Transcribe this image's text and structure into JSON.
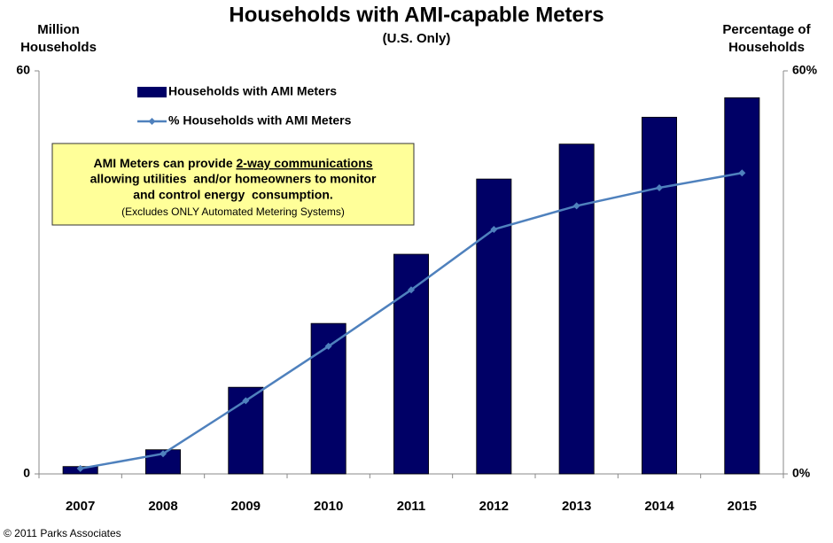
{
  "chart_data": {
    "type": "bar",
    "title": "Households with AMI-capable Meters",
    "subtitle": "(U.S. Only)",
    "y_label": [
      "Million",
      "Households"
    ],
    "y2_label": [
      "Percentage of",
      "Households"
    ],
    "categories": [
      "2007",
      "2008",
      "2009",
      "2010",
      "2011",
      "2012",
      "2013",
      "2014",
      "2015"
    ],
    "series": [
      {
        "name": "Households with AMI Meters",
        "type": "bar",
        "color": "#000066",
        "values": [
          1.1,
          3.6,
          12.9,
          22.4,
          32.7,
          43.9,
          49.1,
          53.1,
          56.0
        ]
      },
      {
        "name": "% Households with AMI Meters",
        "type": "line",
        "axis": "y2",
        "color": "#4f81bd",
        "values": [
          0.8,
          3.0,
          10.9,
          19.0,
          27.4,
          36.4,
          39.9,
          42.6,
          44.8
        ]
      }
    ],
    "ylim": [
      0,
      60
    ],
    "yticks": [
      0,
      60
    ],
    "y2lim": [
      0,
      60
    ],
    "y2ticks": [
      {
        "value": 0,
        "label": "0%"
      },
      {
        "value": 60,
        "label": "60%"
      }
    ],
    "annotation": [
      "AMI Meters can provide ",
      "2-way communications",
      "allowing utilities  and/or homeowners to monitor",
      "and control energy  consumption.",
      "(Excludes ONLY Automated Metering Systems)"
    ],
    "source": "© 2011 Parks Associates"
  }
}
